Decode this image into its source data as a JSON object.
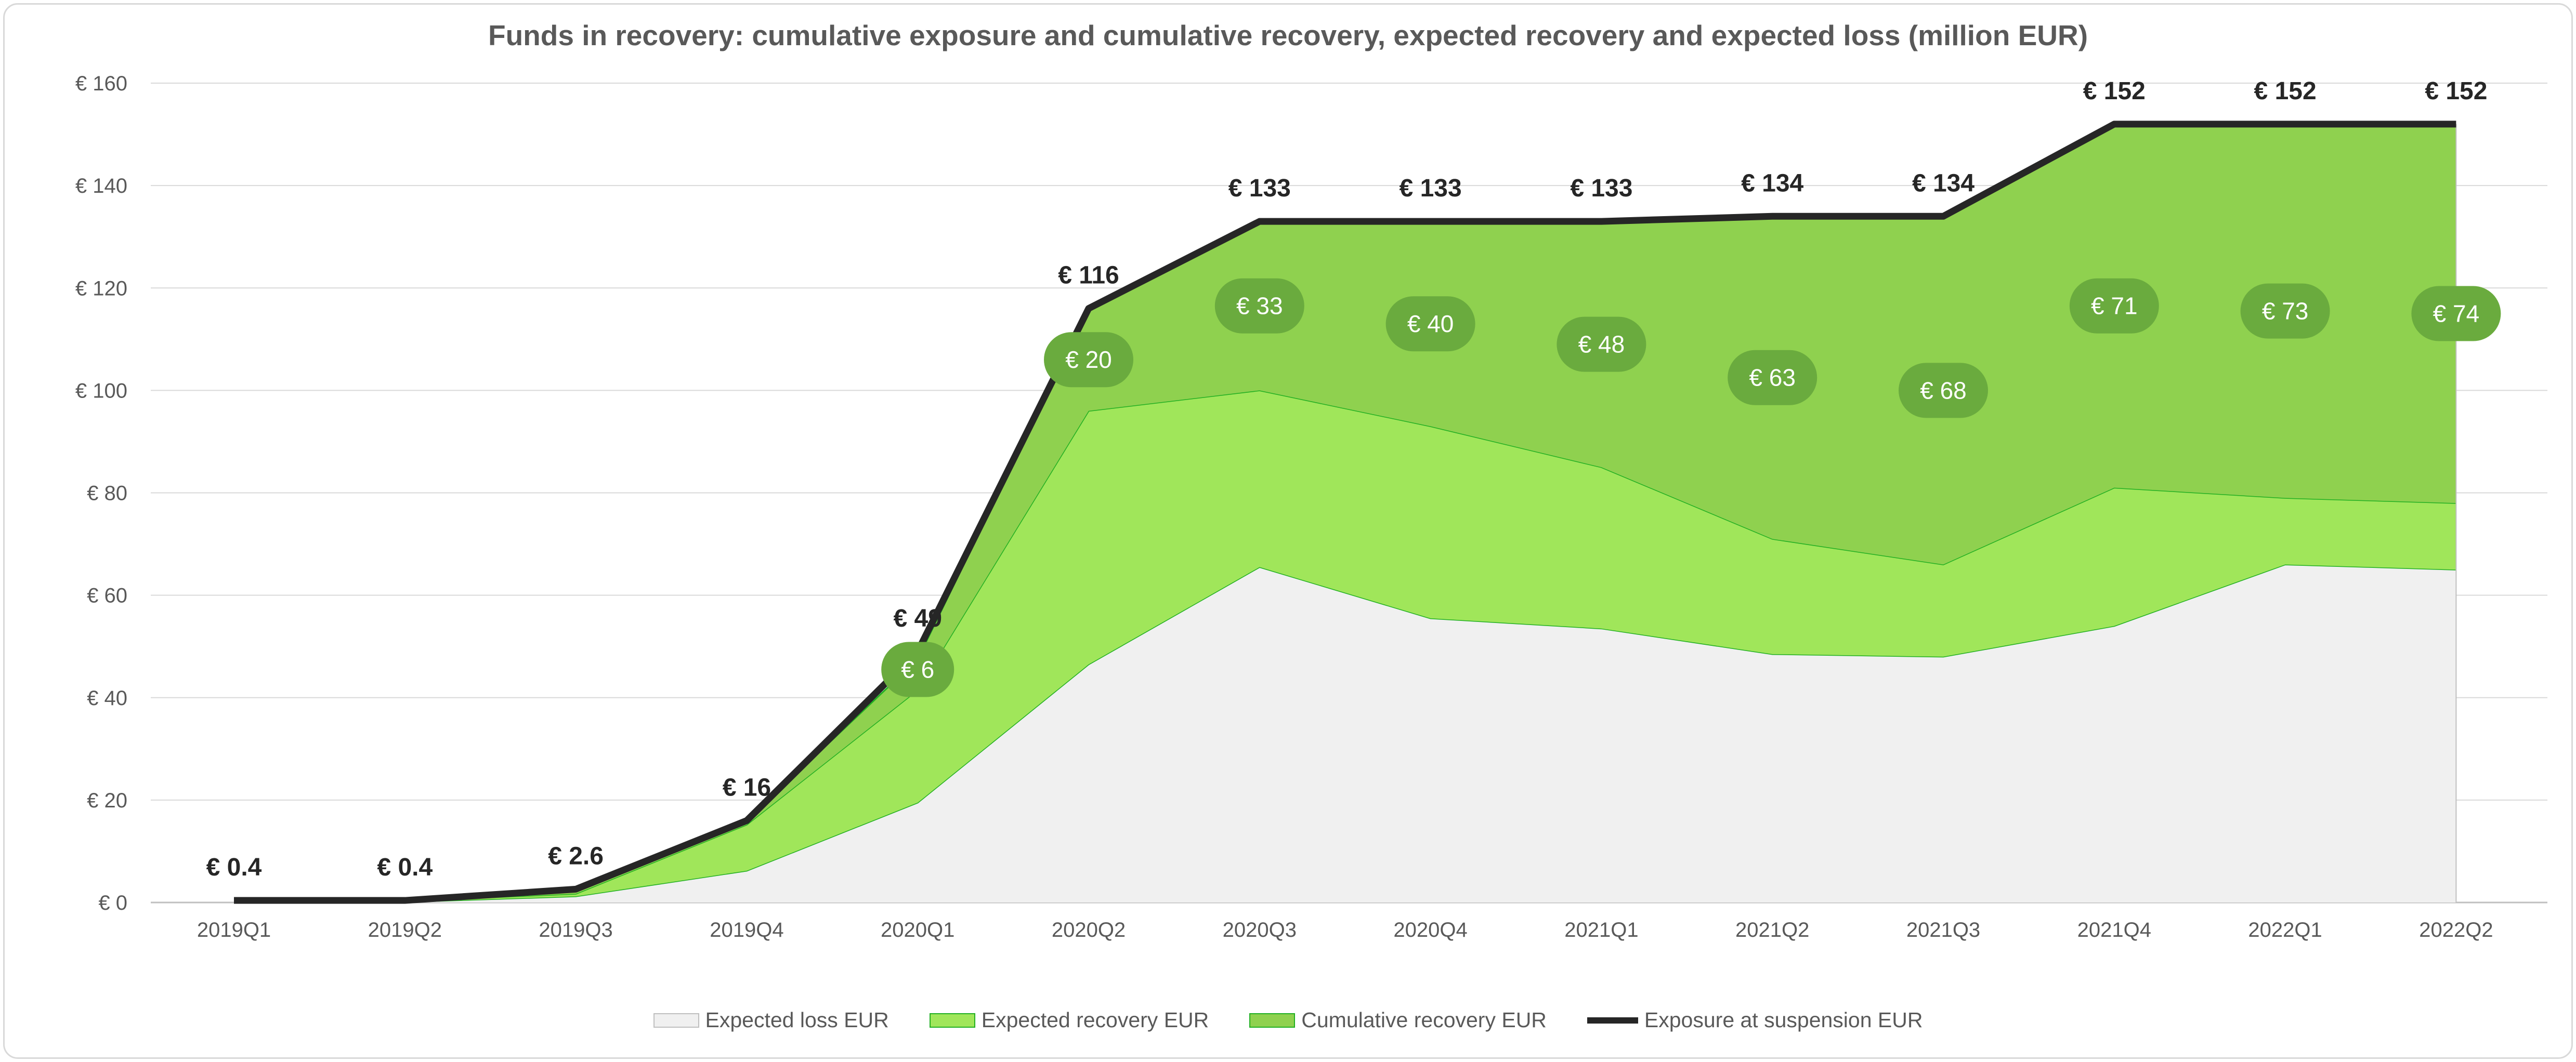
{
  "chart_data": {
    "type": "area",
    "title": "Funds in recovery: cumulative exposure and cumulative recovery, expected recovery and expected loss (million EUR)",
    "categories": [
      "2019Q1",
      "2019Q2",
      "2019Q3",
      "2019Q4",
      "2020Q1",
      "2020Q2",
      "2020Q3",
      "2020Q4",
      "2021Q1",
      "2021Q2",
      "2021Q3",
      "2021Q4",
      "2022Q1",
      "2022Q2"
    ],
    "ylim": [
      0,
      160
    ],
    "yticks": [
      0,
      20,
      40,
      60,
      80,
      100,
      120,
      140,
      160
    ],
    "ytick_labels": [
      "€ 0",
      "€ 20",
      "€ 40",
      "€ 60",
      "€ 80",
      "€ 100",
      "€ 120",
      "€ 140",
      "€ 160"
    ],
    "grid": true,
    "legend_position": "bottom",
    "series": [
      {
        "name": "Expected loss EUR",
        "kind": "area",
        "color": "#f0f0f0",
        "edge": "#22b022",
        "values": [
          0.1,
          0.1,
          1.2,
          6.2,
          19.5,
          46.5,
          65.5,
          55.5,
          53.5,
          48.5,
          48.0,
          54.0,
          66.0,
          65.0
        ]
      },
      {
        "name": "Expected recovery EUR",
        "kind": "area",
        "color": "#a0e65a",
        "edge": "#22b022",
        "values": [
          0.2,
          0.2,
          0.5,
          9.0,
          22.0,
          49.5,
          34.5,
          37.5,
          31.5,
          22.5,
          18.0,
          27.0,
          13.0,
          13.0
        ]
      },
      {
        "name": "Cumulative recovery EUR",
        "kind": "area",
        "color": "#8fd14f",
        "edge": "#22b022",
        "values": [
          0.1,
          0.1,
          0.9,
          0.8,
          6,
          20,
          33,
          40,
          48,
          63,
          68,
          71,
          73,
          74
        ],
        "labels": [
          "",
          "",
          "",
          "",
          "€ 6",
          "€ 20",
          "€ 33",
          "€ 40",
          "€ 48",
          "€ 63",
          "€ 68",
          "€ 71",
          "€ 73",
          "€ 74"
        ]
      },
      {
        "name": "Exposure at suspension EUR",
        "kind": "line",
        "color": "#262626",
        "values": [
          0.4,
          0.4,
          2.6,
          16,
          49,
          116,
          133,
          133,
          133,
          134,
          134,
          152,
          152,
          152
        ],
        "labels": [
          "€ 0.4",
          "€ 0.4",
          "€ 2.6",
          "€ 16",
          "€ 49",
          "€ 116",
          "€ 133",
          "€ 133",
          "€ 133",
          "€ 134",
          "€ 134",
          "€ 152",
          "€ 152",
          "€ 152"
        ]
      }
    ]
  },
  "legend": {
    "items": [
      {
        "label": "Expected loss EUR",
        "color": "#f0f0f0"
      },
      {
        "label": "Expected recovery EUR",
        "color": "#a0e65a"
      },
      {
        "label": "Cumulative recovery EUR",
        "color": "#8fd14f"
      },
      {
        "label": "Exposure at suspension EUR",
        "color": "#262626"
      }
    ]
  },
  "bubble_color": "#6aab3e"
}
